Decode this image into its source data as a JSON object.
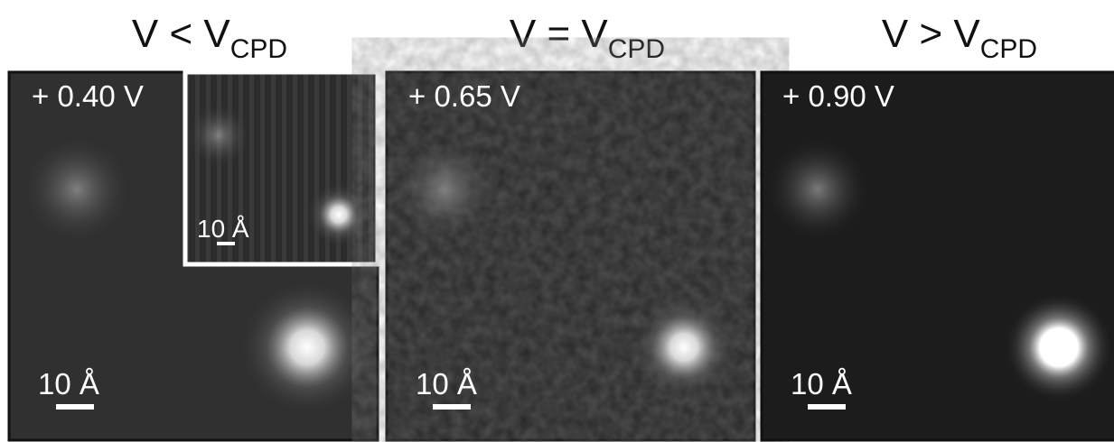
{
  "panels": [
    {
      "title": "V < V",
      "title_subscript": "CPD",
      "bias": "+ 0.40 V",
      "scale_bar": "10 Å",
      "inset_scale_bar": "10 Å"
    },
    {
      "title": "V = V",
      "title_subscript": "CPD",
      "bias": "+ 0.65 V",
      "scale_bar": "10 Å"
    },
    {
      "title": "V > V",
      "title_subscript": "CPD",
      "bias": "+ 0.90 V",
      "scale_bar": "10 Å"
    }
  ]
}
